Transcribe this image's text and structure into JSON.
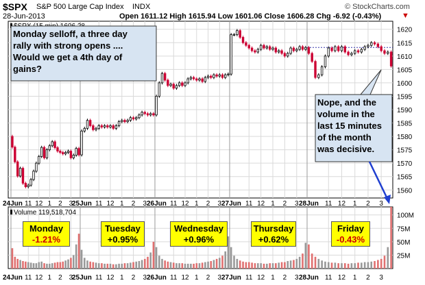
{
  "header": {
    "symbol": "$SPX",
    "name": "S&P 500 Large Cap Index",
    "exchange": "INDX",
    "date": "28-Jun-2013",
    "brand": "© StockCharts.com",
    "ohlc_line": "Open 1611.12  High 1615.94  Low 1601.06  Close 1606.28  Chg -6.92 (-0.43%)",
    "chg_marker": "▼"
  },
  "legend": {
    "price": "$SPX (15 min) 1606.28",
    "volume": "Volume 119,518,704"
  },
  "annotations": {
    "question": [
      "Monday selloff, a three day",
      "rally with strong opens ....",
      "Would we get a 4th day of",
      "gains?"
    ],
    "answer": [
      "Nope, and the",
      "volume in the",
      "last 15 minutes",
      "of the month",
      "was decisive."
    ]
  },
  "days": [
    {
      "day": "Monday",
      "change": "-1.21%",
      "color": "#cc0000"
    },
    {
      "day": "Tuesday",
      "change": "+0.95%",
      "color": "#000000"
    },
    {
      "day": "Wednesday",
      "change": "+0.96%",
      "color": "#000000"
    },
    {
      "day": "Thursday",
      "change": "+0.62%",
      "color": "#000000"
    },
    {
      "day": "Friday",
      "change": "-0.43%",
      "color": "#cc0000"
    }
  ],
  "colors": {
    "up": "#000000",
    "down": "#cc0033",
    "vol_down": "#e07070",
    "vol_up": "#999999",
    "grid": "#d9d9d9",
    "callout_bg": "#d7e4f2"
  },
  "chart_data": {
    "type": "candlestick",
    "title": "$SPX S&P 500 Large Cap Index INDX (15 min)",
    "price_ylim": [
      1557,
      1623
    ],
    "price_ticks": [
      1560,
      1565,
      1570,
      1575,
      1580,
      1585,
      1590,
      1595,
      1600,
      1605,
      1610,
      1615,
      1620
    ],
    "volume_ylim": [
      0,
      115
    ],
    "volume_unit": "M",
    "volume_ticks": [
      {
        "v": 25,
        "label": "25M"
      },
      {
        "v": 50,
        "label": "50M"
      },
      {
        "v": 75,
        "label": "75M"
      },
      {
        "v": 100,
        "label": "100M"
      }
    ],
    "x_tick_labels": [
      [
        "24Jun",
        "11",
        "12",
        "1",
        "2",
        "3"
      ],
      [
        "25Jun",
        "11",
        "12",
        "1",
        "2",
        "3"
      ],
      [
        "26Jun",
        "11",
        "12",
        "1",
        "2",
        "3"
      ],
      [
        "27Jun",
        "11",
        "12",
        "1",
        "2",
        "3"
      ],
      [
        "28Jun",
        "11",
        "12",
        "1",
        "2",
        "3"
      ]
    ],
    "previous_close_1": 1613.2,
    "previous_close_2": 1573.1,
    "sessions": [
      {
        "closes": [
          1576.0,
          1570.5,
          1565.2,
          1568.1,
          1562.5,
          1561.2,
          1561.8,
          1563.9,
          1567.0,
          1570.0,
          1572.5,
          1575.9,
          1572.0,
          1575.0,
          1576.5,
          1578.0,
          1575.8,
          1574.5,
          1574.0,
          1573.5,
          1574.0,
          1574.5,
          1572.0,
          1573.0,
          1575.5,
          1573.1
        ],
        "volumes": [
          38,
          22,
          18,
          16,
          14,
          13,
          12,
          11,
          10,
          10,
          12,
          13,
          10,
          9,
          9,
          10,
          11,
          12,
          12,
          13,
          15,
          17,
          20,
          25,
          45,
          65
        ]
      },
      {
        "closes": [
          1582.0,
          1583.0,
          1586.0,
          1584.0,
          1582.5,
          1583.0,
          1584.0,
          1583.5,
          1584.0,
          1583.5,
          1584.0,
          1583.0,
          1584.0,
          1585.5,
          1586.0,
          1585.5,
          1586.0,
          1587.0,
          1586.5,
          1587.0,
          1588.0,
          1589.0,
          1588.5,
          1588.0,
          1588.5,
          1588.0
        ],
        "volumes": [
          35,
          20,
          15,
          13,
          12,
          11,
          10,
          10,
          9,
          9,
          9,
          8,
          8,
          9,
          9,
          10,
          10,
          11,
          12,
          13,
          14,
          16,
          18,
          22,
          30,
          50
        ]
      },
      {
        "closes": [
          1595.0,
          1600.0,
          1603.5,
          1601.0,
          1599.0,
          1599.5,
          1598.0,
          1599.0,
          1600.0,
          1599.0,
          1600.0,
          1601.5,
          1602.0,
          1601.5,
          1601.0,
          1601.5,
          1600.5,
          1602.0,
          1602.5,
          1602.0,
          1603.0,
          1602.5,
          1603.0,
          1602.0,
          1603.0,
          1603.26
        ],
        "volumes": [
          40,
          24,
          18,
          15,
          13,
          12,
          11,
          10,
          10,
          10,
          9,
          9,
          9,
          9,
          10,
          10,
          11,
          12,
          13,
          14,
          16,
          18,
          20,
          24,
          32,
          60
        ]
      },
      {
        "closes": [
          1618.0,
          1618.0,
          1619.5,
          1617.0,
          1615.0,
          1614.0,
          1613.0,
          1612.0,
          1611.5,
          1612.5,
          1614.0,
          1613.0,
          1613.5,
          1612.5,
          1613.0,
          1611.5,
          1612.0,
          1611.0,
          1610.0,
          1611.0,
          1613.0,
          1612.0,
          1612.5,
          1613.5,
          1612.5,
          1613.2
        ],
        "volumes": [
          40,
          24,
          18,
          15,
          13,
          12,
          12,
          11,
          10,
          10,
          10,
          9,
          9,
          10,
          10,
          10,
          11,
          12,
          12,
          14,
          15,
          16,
          18,
          22,
          28,
          48
        ]
      },
      {
        "closes": [
          1611.0,
          1608.0,
          1602.0,
          1603.0,
          1606.0,
          1610.0,
          1613.0,
          1612.0,
          1613.5,
          1612.0,
          1613.5,
          1611.5,
          1610.5,
          1611.0,
          1612.0,
          1611.5,
          1612.5,
          1613.5,
          1614.0,
          1615.0,
          1614.5,
          1613.5,
          1612.0,
          1611.0,
          1611.5,
          1606.28
        ],
        "volumes": [
          45,
          28,
          22,
          18,
          15,
          13,
          12,
          11,
          11,
          10,
          10,
          10,
          9,
          10,
          10,
          11,
          11,
          12,
          12,
          13,
          14,
          16,
          18,
          24,
          40,
          120
        ]
      }
    ]
  }
}
